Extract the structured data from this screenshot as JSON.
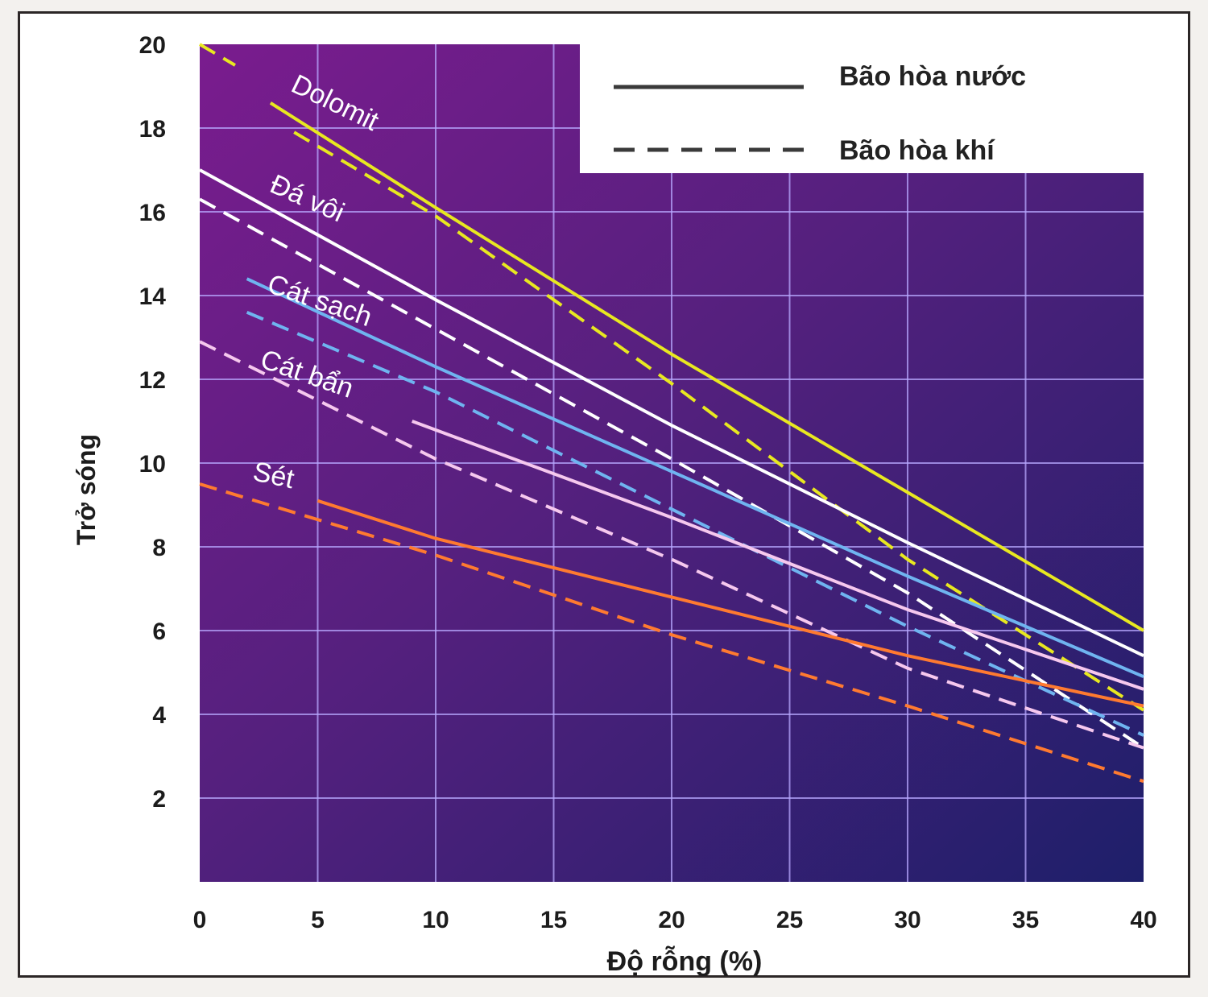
{
  "chart_data": {
    "type": "line",
    "title": "",
    "xlabel": "Độ rỗng (%)",
    "ylabel": "Trở sóng",
    "xlim": [
      0,
      40
    ],
    "ylim": [
      0,
      20
    ],
    "xticks": [
      "0",
      "5",
      "10",
      "15",
      "20",
      "25",
      "30",
      "35",
      "40"
    ],
    "yticks": [
      "2",
      "4",
      "6",
      "8",
      "10",
      "12",
      "14",
      "16",
      "18",
      "20"
    ],
    "grid": true,
    "legend": {
      "position": "top-right",
      "entries": [
        {
          "label": "Bão hòa nước",
          "style": "solid"
        },
        {
          "label": "Bão hòa khí",
          "style": "dashed"
        }
      ]
    },
    "series": [
      {
        "name": "Dolomit",
        "color": "#e8e820",
        "water": {
          "x": [
            3,
            10,
            20,
            30,
            40
          ],
          "y": [
            18.6,
            16.1,
            12.6,
            9.3,
            6.0
          ]
        },
        "gas": {
          "x": [
            0,
            1.5
          ],
          "y": [
            20,
            19.5
          ]
        },
        "gas2": {
          "x": [
            4,
            10,
            20,
            30,
            40
          ],
          "y": [
            17.9,
            15.9,
            11.9,
            7.7,
            4.1
          ]
        }
      },
      {
        "name": "Đá vôi",
        "color": "#ffffff",
        "water": {
          "x": [
            0,
            10,
            20,
            30,
            40
          ],
          "y": [
            17.0,
            13.9,
            10.9,
            8.1,
            5.4
          ]
        },
        "gas": {
          "x": [
            0,
            10,
            20,
            30,
            40
          ],
          "y": [
            16.3,
            13.2,
            10.1,
            6.9,
            3.2
          ]
        }
      },
      {
        "name": "Cát sạch",
        "color": "#6fb4f0",
        "water": {
          "x": [
            2,
            10,
            20,
            30,
            40
          ],
          "y": [
            14.4,
            12.3,
            9.8,
            7.3,
            4.9
          ]
        },
        "gas": {
          "x": [
            2,
            10,
            20,
            30,
            40
          ],
          "y": [
            13.6,
            11.7,
            8.9,
            6.1,
            3.5
          ]
        }
      },
      {
        "name": "Cát bẩn",
        "color": "#f6c8ee",
        "water": {
          "x": [
            9,
            20,
            30,
            40
          ],
          "y": [
            11.0,
            8.7,
            6.5,
            4.6
          ]
        },
        "gas": {
          "x": [
            0,
            10,
            20,
            30,
            40
          ],
          "y": [
            12.9,
            10.1,
            7.7,
            5.1,
            3.2
          ]
        }
      },
      {
        "name": "Sét",
        "color": "#ff7a30",
        "water": {
          "x": [
            5,
            10,
            20,
            30,
            40
          ],
          "y": [
            9.1,
            8.2,
            6.8,
            5.4,
            4.2
          ]
        },
        "gas": {
          "x": [
            0,
            10,
            20,
            30,
            40
          ],
          "y": [
            9.5,
            7.8,
            5.9,
            4.2,
            2.4
          ]
        }
      }
    ]
  }
}
